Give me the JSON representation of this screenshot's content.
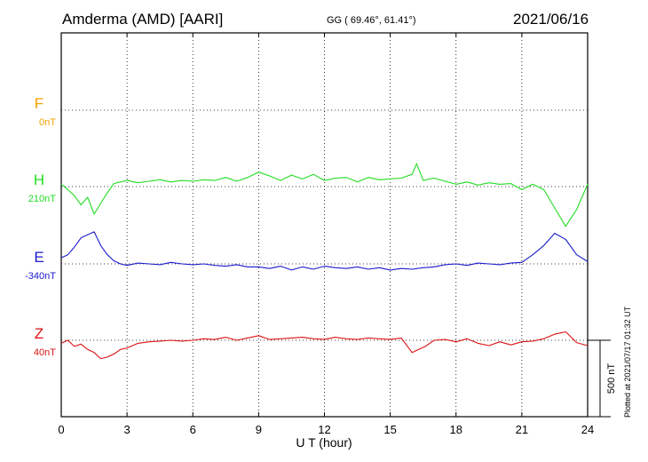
{
  "header": {
    "station": "Amderma (AMD)  [AARI]",
    "coordinates": "GG ( 69.46°,  61.41°)",
    "date": "2021/06/16",
    "plotted": "Plotted at 2021/07/17 01:32 UT"
  },
  "chart_data": {
    "type": "line",
    "title": "Amderma (AMD)  [AARI]",
    "xlabel": "U T (hour)",
    "ylabel": "",
    "xlim": [
      0,
      24
    ],
    "xticks": [
      "0",
      "3",
      "6",
      "9",
      "12",
      "15",
      "18",
      "21",
      "24"
    ],
    "grid": true,
    "scale_bar": {
      "label": "500 nT",
      "value_nT": 500
    },
    "series": [
      {
        "name": "F",
        "baseline": "0nT",
        "color": "#f5a000",
        "values": []
      },
      {
        "name": "H",
        "baseline": "210nT",
        "color": "#22dd22",
        "x": [
          0,
          0.3,
          0.6,
          0.9,
          1.2,
          1.5,
          1.8,
          2.1,
          2.4,
          2.7,
          3.0,
          3.5,
          4,
          4.5,
          5,
          5.5,
          6,
          6.5,
          7,
          7.5,
          8,
          8.5,
          9,
          9.5,
          10,
          10.5,
          11,
          11.5,
          12,
          12.5,
          13,
          13.5,
          14,
          14.5,
          15,
          15.5,
          16,
          16.2,
          16.5,
          17,
          17.5,
          18,
          18.5,
          19,
          19.5,
          20,
          20.5,
          21,
          21.5,
          22,
          22.5,
          23,
          23.5,
          24
        ],
        "values": [
          15,
          -20,
          -60,
          -120,
          -70,
          -180,
          -110,
          -40,
          20,
          30,
          40,
          25,
          35,
          45,
          30,
          40,
          35,
          45,
          40,
          60,
          35,
          60,
          95,
          70,
          40,
          75,
          50,
          80,
          40,
          55,
          60,
          30,
          60,
          45,
          50,
          55,
          80,
          150,
          40,
          55,
          35,
          15,
          30,
          10,
          25,
          15,
          20,
          -20,
          15,
          -20,
          -140,
          -260,
          -150,
          15
        ]
      },
      {
        "name": "E",
        "baseline": "-340nT",
        "color": "#1a1acc",
        "x": [
          0,
          0.3,
          0.6,
          0.9,
          1.2,
          1.5,
          1.8,
          2.1,
          2.4,
          2.7,
          3.0,
          3.5,
          4,
          4.5,
          5,
          5.5,
          6,
          6.5,
          7,
          7.5,
          8,
          8.5,
          9,
          9.5,
          10,
          10.5,
          11,
          11.5,
          12,
          12.5,
          13,
          13.5,
          14,
          14.5,
          15,
          15.5,
          16,
          16.5,
          17,
          17.5,
          18,
          18.5,
          19,
          19.5,
          20,
          20.5,
          21,
          21.5,
          22,
          22.5,
          23,
          23.5,
          24
        ],
        "values": [
          40,
          60,
          110,
          170,
          190,
          210,
          120,
          60,
          20,
          0,
          -10,
          5,
          0,
          -5,
          10,
          0,
          -5,
          0,
          -10,
          -15,
          -5,
          -20,
          -20,
          -30,
          -15,
          -40,
          -20,
          -35,
          -15,
          -25,
          -30,
          -20,
          -35,
          -25,
          -40,
          -30,
          -35,
          -25,
          -20,
          -5,
          0,
          -10,
          5,
          0,
          -5,
          5,
          10,
          60,
          120,
          200,
          160,
          60,
          15
        ]
      },
      {
        "name": "Z",
        "baseline": "40nT",
        "color": "#dd1111",
        "x": [
          0,
          0.3,
          0.6,
          0.9,
          1.2,
          1.5,
          1.8,
          2.1,
          2.4,
          2.7,
          3.0,
          3.5,
          4,
          4.5,
          5,
          5.5,
          6,
          6.5,
          7,
          7.5,
          8,
          8.5,
          9,
          9.5,
          10,
          10.5,
          11,
          11.5,
          12,
          12.5,
          13,
          13.5,
          14,
          14.5,
          15,
          15.5,
          16,
          16.3,
          16.6,
          17,
          17.5,
          18,
          18.5,
          19,
          19.5,
          20,
          20.5,
          21,
          21.5,
          22,
          22.5,
          23,
          23.5,
          24
        ],
        "values": [
          -20,
          0,
          -40,
          -25,
          -60,
          -80,
          -120,
          -110,
          -90,
          -60,
          -50,
          -20,
          -10,
          -5,
          0,
          -5,
          0,
          10,
          5,
          20,
          0,
          15,
          30,
          5,
          10,
          15,
          20,
          10,
          5,
          20,
          10,
          5,
          15,
          10,
          5,
          15,
          -80,
          -60,
          -40,
          0,
          5,
          -10,
          10,
          -20,
          -35,
          -10,
          -30,
          -10,
          -5,
          10,
          40,
          55,
          -15,
          -35
        ]
      }
    ]
  }
}
